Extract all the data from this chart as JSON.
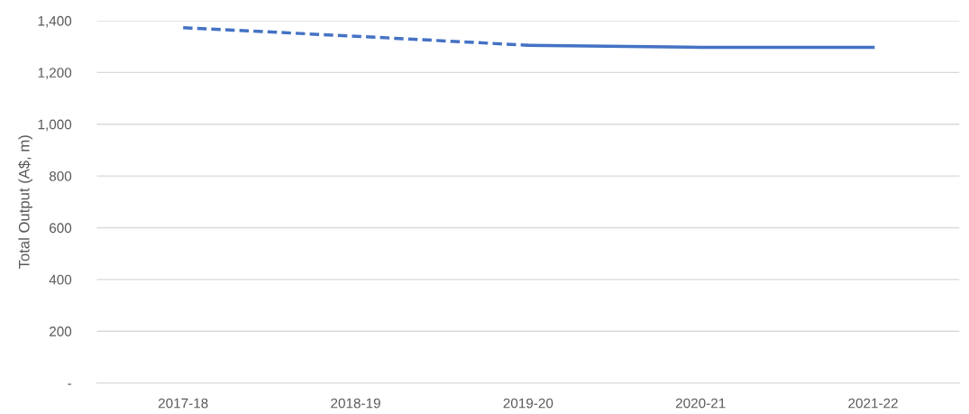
{
  "chart_data": {
    "type": "line",
    "ylabel": "Total Output (A$, m)",
    "categories": [
      "2017-18",
      "2018-19",
      "2019-20",
      "2020-21",
      "2021-22"
    ],
    "series": [
      {
        "color": "#4472c4",
        "line_style": "dashed",
        "values": [
          1373,
          1340,
          1305,
          null,
          null
        ]
      },
      {
        "color": "#4472c4",
        "line_style": "solid",
        "values": [
          null,
          null,
          1305,
          1297,
          1297
        ]
      }
    ],
    "ylim": [
      0,
      1400
    ],
    "yticks": [
      {
        "value": 0,
        "label": "-"
      },
      {
        "value": 200,
        "label": "200"
      },
      {
        "value": 400,
        "label": "400"
      },
      {
        "value": 600,
        "label": "600"
      },
      {
        "value": 800,
        "label": "800"
      },
      {
        "value": 1000,
        "label": "1,000"
      },
      {
        "value": 1200,
        "label": "1,200"
      },
      {
        "value": 1400,
        "label": "1,400"
      }
    ],
    "grid": "y",
    "marker": "none",
    "legend": false
  }
}
